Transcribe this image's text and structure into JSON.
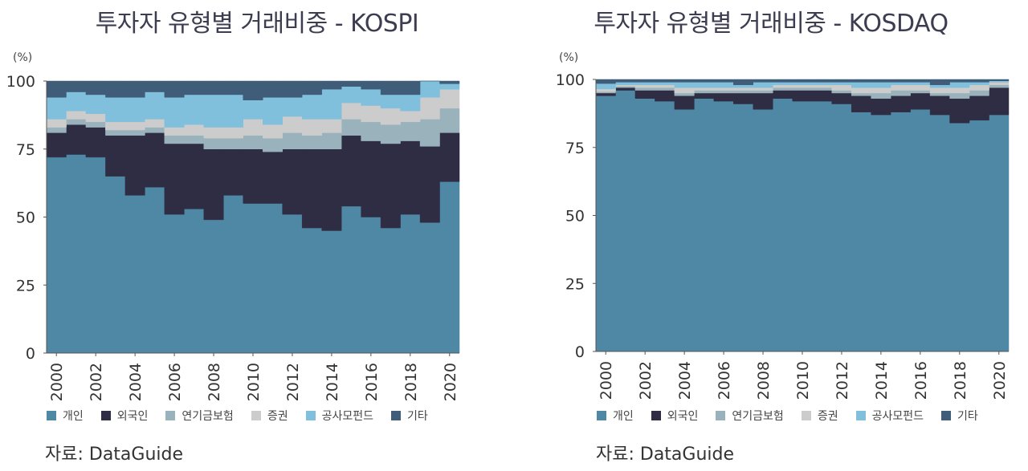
{
  "chart_data": [
    {
      "type": "area",
      "stacked": true,
      "title": "투자자 유형별 거래비중 - KOSPI",
      "ylabel": "(%)",
      "ylim": [
        0,
        100
      ],
      "yticks": [
        0,
        25,
        50,
        75,
        100
      ],
      "x": [
        2000,
        2001,
        2002,
        2003,
        2004,
        2005,
        2006,
        2007,
        2008,
        2009,
        2010,
        2011,
        2012,
        2013,
        2014,
        2015,
        2016,
        2017,
        2018,
        2019,
        2020
      ],
      "xticks": [
        "2000",
        "2002",
        "2004",
        "2006",
        "2008",
        "2010",
        "2012",
        "2014",
        "2016",
        "2018",
        "2020"
      ],
      "legend_position": "bottom",
      "series": [
        {
          "name": "개인",
          "color": "#4f88a4",
          "values": [
            72,
            73,
            72,
            65,
            58,
            61,
            51,
            53,
            49,
            58,
            55,
            55,
            51,
            46,
            45,
            54,
            50,
            46,
            51,
            48,
            63
          ]
        },
        {
          "name": "외국인",
          "color": "#2f2d44",
          "values": [
            9,
            11,
            11,
            15,
            22,
            20,
            26,
            24,
            26,
            17,
            20,
            19,
            24,
            29,
            30,
            26,
            28,
            31,
            27,
            28,
            18
          ]
        },
        {
          "name": "연기금보험",
          "color": "#99b2bb",
          "values": [
            2,
            2,
            2,
            2,
            2,
            2,
            3,
            3,
            4,
            4,
            5,
            5,
            6,
            5,
            6,
            6,
            7,
            7,
            7,
            10,
            9
          ]
        },
        {
          "name": "증권",
          "color": "#cccccc",
          "values": [
            3,
            3,
            3,
            3,
            3,
            3,
            3,
            4,
            4,
            4,
            6,
            5,
            6,
            6,
            5,
            6,
            6,
            6,
            4,
            8,
            7
          ]
        },
        {
          "name": "공사모펀드",
          "color": "#80c0dc",
          "values": [
            8,
            7,
            7,
            9,
            9,
            10,
            11,
            11,
            12,
            12,
            7,
            10,
            7,
            9,
            11,
            6,
            6,
            5,
            6,
            6,
            2
          ]
        },
        {
          "name": "기타",
          "color": "#3f5c78",
          "values": [
            6,
            4,
            5,
            6,
            6,
            4,
            6,
            5,
            5,
            5,
            7,
            6,
            6,
            5,
            3,
            2,
            3,
            5,
            5,
            0,
            1
          ]
        }
      ]
    },
    {
      "type": "area",
      "stacked": true,
      "title": "투자자 유형별 거래비중 - KOSDAQ",
      "ylabel": "(%)",
      "ylim": [
        0,
        100
      ],
      "yticks": [
        0,
        25,
        50,
        75,
        100
      ],
      "x": [
        2000,
        2001,
        2002,
        2003,
        2004,
        2005,
        2006,
        2007,
        2008,
        2009,
        2010,
        2011,
        2012,
        2013,
        2014,
        2015,
        2016,
        2017,
        2018,
        2019,
        2020
      ],
      "xticks": [
        "2000",
        "2002",
        "2004",
        "2006",
        "2008",
        "2010",
        "2012",
        "2014",
        "2016",
        "2018",
        "2020"
      ],
      "legend_position": "bottom",
      "series": [
        {
          "name": "개인",
          "color": "#4f88a4",
          "values": [
            94,
            96,
            93,
            92,
            89,
            93,
            92,
            91,
            89,
            93,
            92,
            92,
            91,
            88,
            87,
            88,
            89,
            87,
            84,
            85,
            87
          ]
        },
        {
          "name": "외국인",
          "color": "#2f2d44",
          "values": [
            1,
            1,
            3,
            4,
            5,
            2,
            3,
            4,
            6,
            3,
            4,
            4,
            4,
            6,
            6,
            6,
            6,
            7,
            9,
            9,
            10
          ]
        },
        {
          "name": "연기금보험",
          "color": "#99b2bb",
          "values": [
            0.5,
            0.5,
            1,
            1,
            1,
            1,
            1,
            1,
            1,
            1,
            1,
            1,
            1,
            1,
            2,
            2,
            1,
            1,
            2,
            2,
            1
          ]
        },
        {
          "name": "증권",
          "color": "#cccccc",
          "values": [
            1,
            0.5,
            1,
            1,
            2,
            1,
            1,
            1,
            1,
            1,
            1,
            1,
            2,
            2,
            2,
            2,
            2,
            2,
            2,
            2,
            1
          ]
        },
        {
          "name": "공사모펀드",
          "color": "#80c0dc",
          "values": [
            2,
            1,
            1,
            1,
            2,
            2,
            2,
            1,
            2,
            1,
            1,
            1,
            1,
            2,
            2,
            1,
            1,
            1,
            2,
            1,
            0.5
          ]
        },
        {
          "name": "기타",
          "color": "#3f5c78",
          "values": [
            1.5,
            1,
            1,
            1,
            1,
            1,
            1,
            2,
            1,
            1,
            1,
            1,
            1,
            1,
            1,
            1,
            1,
            2,
            1,
            1,
            0.5
          ]
        }
      ]
    }
  ],
  "source_label": "자료: DataGuide"
}
